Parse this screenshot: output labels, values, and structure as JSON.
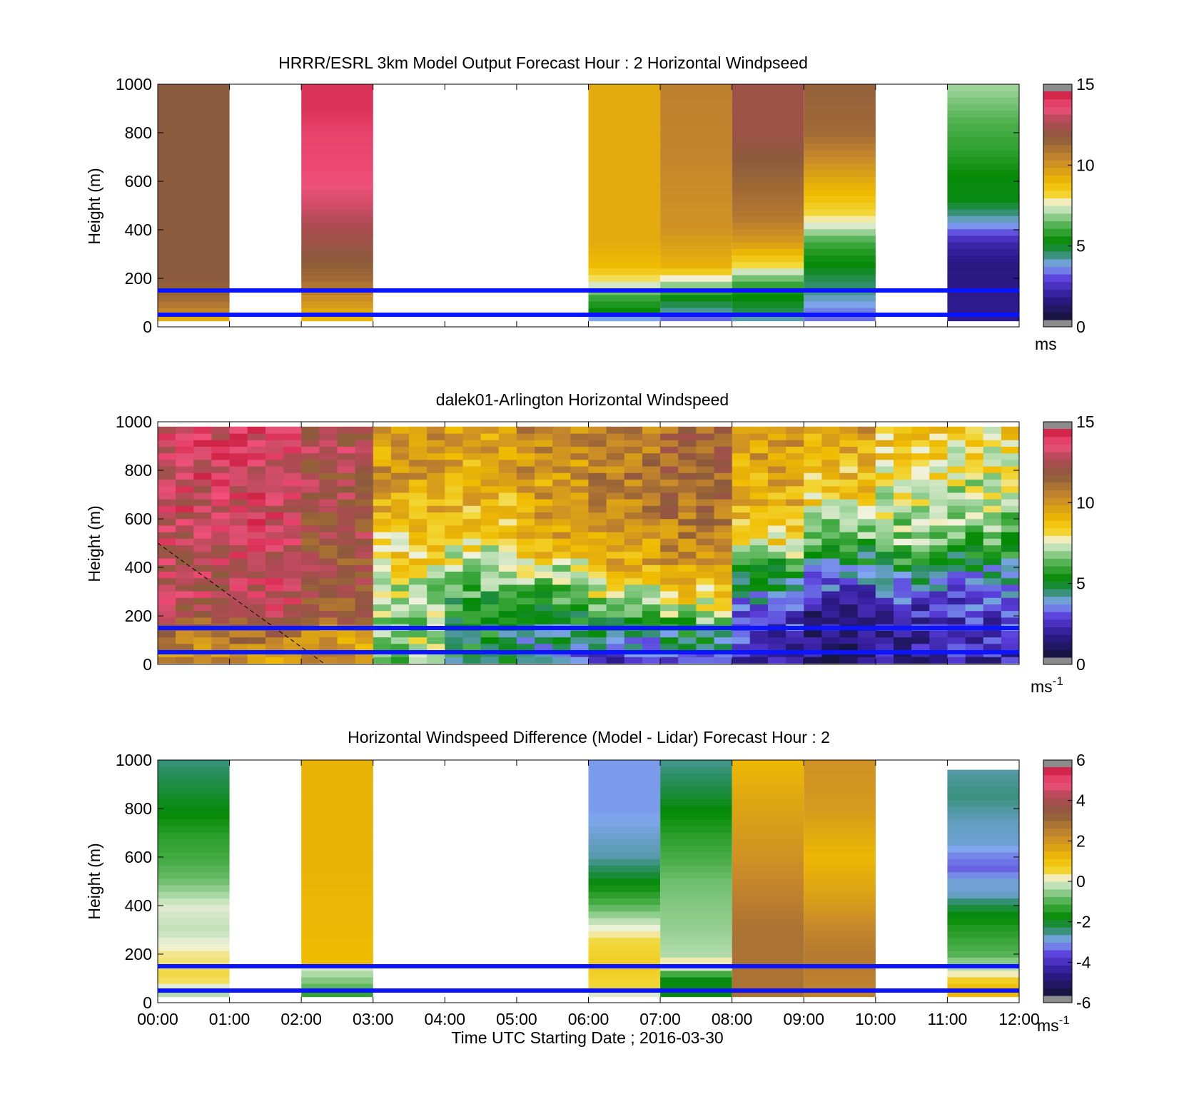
{
  "chart_data": [
    {
      "type": "heatmap",
      "title": "HRRR/ESRL 3km Model Output   Forecast Hour : 2 Horizontal Windpseed",
      "ylabel": "Height (m)",
      "ylim": [
        0,
        1000
      ],
      "yticks": [
        "0",
        "200",
        "400",
        "600",
        "800",
        "1000"
      ],
      "xlim": [
        "00:00",
        "12:00"
      ],
      "colorbar": {
        "ticks": [
          "0",
          "5",
          "10",
          "15"
        ],
        "range": [
          0,
          15
        ],
        "unit": "ms"
      },
      "reference_lines_m": [
        50,
        150
      ],
      "columns": [
        {
          "start": "00:00",
          "end": "01:00",
          "profile": [
            [
              0,
              10
            ],
            [
              30,
              9
            ],
            [
              60,
              10.5
            ],
            [
              120,
              11.5
            ],
            [
              200,
              12
            ],
            [
              1000,
              12
            ]
          ]
        },
        {
          "start": "02:00",
          "end": "03:00",
          "profile": [
            [
              0,
              5
            ],
            [
              30,
              9
            ],
            [
              90,
              10
            ],
            [
              200,
              11.5
            ],
            [
              350,
              12.5
            ],
            [
              500,
              13.5
            ],
            [
              600,
              14
            ],
            [
              800,
              14.2
            ],
            [
              900,
              14.5
            ],
            [
              1000,
              14.5
            ]
          ]
        },
        {
          "start": "06:00",
          "end": "07:00",
          "profile": [
            [
              0,
              1
            ],
            [
              60,
              5
            ],
            [
              130,
              6
            ],
            [
              180,
              7.6
            ],
            [
              250,
              9
            ],
            [
              350,
              9.5
            ],
            [
              1000,
              9.5
            ]
          ]
        },
        {
          "start": "07:00",
          "end": "08:00",
          "profile": [
            [
              0,
              1.5
            ],
            [
              60,
              4
            ],
            [
              120,
              5
            ],
            [
              180,
              7
            ],
            [
              250,
              9.3
            ],
            [
              400,
              10.2
            ],
            [
              700,
              10.6
            ],
            [
              1000,
              10.8
            ]
          ]
        },
        {
          "start": "08:00",
          "end": "09:00",
          "profile": [
            [
              0,
              3
            ],
            [
              60,
              4.5
            ],
            [
              160,
              5.5
            ],
            [
              200,
              6.5
            ],
            [
              250,
              8
            ],
            [
              350,
              10
            ],
            [
              450,
              11
            ],
            [
              700,
              12
            ],
            [
              800,
              12.5
            ],
            [
              1000,
              12.5
            ]
          ]
        },
        {
          "start": "09:00",
          "end": "10:00",
          "profile": [
            [
              0,
              3
            ],
            [
              60,
              3.2
            ],
            [
              130,
              4
            ],
            [
              250,
              5
            ],
            [
              350,
              6
            ],
            [
              420,
              7.5
            ],
            [
              500,
              8.5
            ],
            [
              600,
              9.5
            ],
            [
              700,
              10.5
            ],
            [
              800,
              11.5
            ],
            [
              1000,
              11.8
            ]
          ]
        },
        {
          "start": "11:00",
          "end": "12:00",
          "profile": [
            [
              0,
              1.5
            ],
            [
              100,
              1.5
            ],
            [
              250,
              1.2
            ],
            [
              350,
              2
            ],
            [
              420,
              3.5
            ],
            [
              520,
              5
            ],
            [
              600,
              5
            ],
            [
              700,
              5.6
            ],
            [
              850,
              6.2
            ],
            [
              1000,
              7
            ]
          ]
        }
      ]
    },
    {
      "type": "heatmap",
      "title": "dalek01-Arlington  Horizontal Windspeed",
      "ylabel": "Height (m)",
      "ylim": [
        0,
        1000
      ],
      "yticks": [
        "0",
        "200",
        "400",
        "600",
        "800",
        "1000"
      ],
      "xlim": [
        "00:00",
        "12:00"
      ],
      "colorbar": {
        "ticks": [
          "0",
          "5",
          "10",
          "15"
        ],
        "range": [
          0,
          15
        ],
        "unit": "ms",
        "unit_exp": "-1"
      },
      "reference_lines_m": [
        50,
        150
      ],
      "dashed_line": [
        [
          "00:00",
          500
        ],
        [
          "02:20",
          0
        ]
      ],
      "columns_per_hour": 4,
      "profiles_by_hour": [
        [
          [
            0,
            10
          ],
          [
            100,
            11
          ],
          [
            250,
            13
          ],
          [
            1000,
            14
          ]
        ],
        [
          [
            0,
            10
          ],
          [
            100,
            11
          ],
          [
            250,
            13.5
          ],
          [
            1000,
            14
          ]
        ],
        [
          [
            0,
            10
          ],
          [
            100,
            10
          ],
          [
            200,
            12
          ],
          [
            1000,
            13
          ]
        ],
        [
          [
            0,
            6
          ],
          [
            100,
            7
          ],
          [
            200,
            7
          ],
          [
            300,
            7
          ],
          [
            400,
            8
          ],
          [
            600,
            9
          ],
          [
            800,
            10
          ],
          [
            1000,
            10
          ]
        ],
        [
          [
            0,
            5
          ],
          [
            200,
            5
          ],
          [
            400,
            7
          ],
          [
            600,
            9
          ],
          [
            1000,
            10
          ]
        ],
        [
          [
            0,
            3
          ],
          [
            200,
            5
          ],
          [
            300,
            6
          ],
          [
            400,
            7.5
          ],
          [
            500,
            9.5
          ],
          [
            1000,
            10.5
          ]
        ],
        [
          [
            0,
            2
          ],
          [
            100,
            4
          ],
          [
            200,
            6
          ],
          [
            300,
            7.5
          ],
          [
            400,
            9.5
          ],
          [
            700,
            11
          ],
          [
            1000,
            11
          ]
        ],
        [
          [
            0,
            3
          ],
          [
            150,
            5
          ],
          [
            200,
            7
          ],
          [
            300,
            8.5
          ],
          [
            400,
            10
          ],
          [
            700,
            11.5
          ],
          [
            1000,
            11.5
          ]
        ],
        [
          [
            0,
            2
          ],
          [
            200,
            2.5
          ],
          [
            300,
            4
          ],
          [
            400,
            5.5
          ],
          [
            500,
            8
          ],
          [
            700,
            9.5
          ],
          [
            1000,
            10
          ]
        ],
        [
          [
            0,
            1
          ],
          [
            200,
            1.5
          ],
          [
            300,
            2.5
          ],
          [
            400,
            4
          ],
          [
            500,
            6
          ],
          [
            700,
            8.5
          ],
          [
            1000,
            10
          ]
        ],
        [
          [
            0,
            1.5
          ],
          [
            200,
            2
          ],
          [
            300,
            3
          ],
          [
            400,
            5
          ],
          [
            500,
            6.5
          ],
          [
            700,
            7.5
          ],
          [
            1000,
            9
          ]
        ],
        [
          [
            0,
            2
          ],
          [
            200,
            2.5
          ],
          [
            300,
            3
          ],
          [
            450,
            5
          ],
          [
            550,
            6.5
          ],
          [
            750,
            7.5
          ],
          [
            1000,
            8.5
          ]
        ]
      ]
    },
    {
      "type": "heatmap",
      "title": "Horizontal Windspeed Difference (Model - Lidar) Forecast Hour : 2",
      "ylabel": "Height (m)",
      "xlabel": "Time UTC  Starting Date ; 2016-03-30",
      "ylim": [
        0,
        1000
      ],
      "yticks": [
        "0",
        "200",
        "400",
        "600",
        "800",
        "1000"
      ],
      "xticks": [
        "00:00",
        "01:00",
        "02:00",
        "03:00",
        "04:00",
        "05:00",
        "06:00",
        "07:00",
        "08:00",
        "09:00",
        "10:00",
        "11:00",
        "12:00"
      ],
      "colorbar": {
        "ticks": [
          "-6",
          "-4",
          "-2",
          "0",
          "2",
          "4",
          "6"
        ],
        "range": [
          -6,
          6
        ],
        "unit": "ms",
        "unit_exp": "-1"
      },
      "reference_lines_m": [
        50,
        150
      ],
      "columns": [
        {
          "start": "00:00",
          "end": "01:00",
          "profile": [
            [
              0,
              -0.8
            ],
            [
              100,
              0.5
            ],
            [
              200,
              0.3
            ],
            [
              300,
              -0.2
            ],
            [
              400,
              0
            ],
            [
              500,
              -0.8
            ],
            [
              600,
              -1.2
            ],
            [
              700,
              -1.5
            ],
            [
              800,
              -2
            ],
            [
              900,
              -2.3
            ],
            [
              1000,
              -2.6
            ]
          ]
        },
        {
          "start": "02:00",
          "end": "03:00",
          "profile": [
            [
              0,
              -2
            ],
            [
              60,
              -1
            ],
            [
              150,
              0
            ],
            [
              170,
              1.2
            ],
            [
              300,
              1.3
            ],
            [
              600,
              1.4
            ],
            [
              1000,
              1.4
            ]
          ]
        },
        {
          "start": "06:00",
          "end": "07:00",
          "profile": [
            [
              0,
              -1
            ],
            [
              60,
              0.5
            ],
            [
              150,
              0.8
            ],
            [
              250,
              0.5
            ],
            [
              320,
              0
            ],
            [
              400,
              -1
            ],
            [
              500,
              -2
            ],
            [
              600,
              -2.8
            ],
            [
              800,
              -3.2
            ],
            [
              1000,
              -3.2
            ]
          ]
        },
        {
          "start": "07:00",
          "end": "08:00",
          "profile": [
            [
              0,
              -2
            ],
            [
              100,
              -2
            ],
            [
              160,
              0.5
            ],
            [
              200,
              -0.3
            ],
            [
              300,
              -0.5
            ],
            [
              500,
              -0.8
            ],
            [
              700,
              -1.5
            ],
            [
              850,
              -2.2
            ],
            [
              1000,
              -2.7
            ]
          ]
        },
        {
          "start": "08:00",
          "end": "09:00",
          "profile": [
            [
              0,
              3
            ],
            [
              150,
              3
            ],
            [
              300,
              3
            ],
            [
              450,
              2.6
            ],
            [
              600,
              2.2
            ],
            [
              800,
              1.8
            ],
            [
              1000,
              1.3
            ]
          ]
        },
        {
          "start": "09:00",
          "end": "10:00",
          "profile": [
            [
              0,
              2.5
            ],
            [
              200,
              2.8
            ],
            [
              300,
              2.5
            ],
            [
              450,
              1.8
            ],
            [
              600,
              1.3
            ],
            [
              800,
              2
            ],
            [
              1000,
              2.2
            ]
          ]
        },
        {
          "start": "11:00",
          "end": "12:00",
          "profile": [
            [
              0,
              1.5
            ],
            [
              80,
              1
            ],
            [
              130,
              0
            ],
            [
              200,
              -1
            ],
            [
              300,
              -1.5
            ],
            [
              400,
              -2.3
            ],
            [
              450,
              -3
            ],
            [
              500,
              -3
            ],
            [
              550,
              -3.6
            ],
            [
              600,
              -3.4
            ],
            [
              650,
              -3
            ],
            [
              750,
              -2.9
            ],
            [
              850,
              -2.6
            ],
            [
              960,
              -2.8
            ]
          ]
        }
      ]
    }
  ]
}
